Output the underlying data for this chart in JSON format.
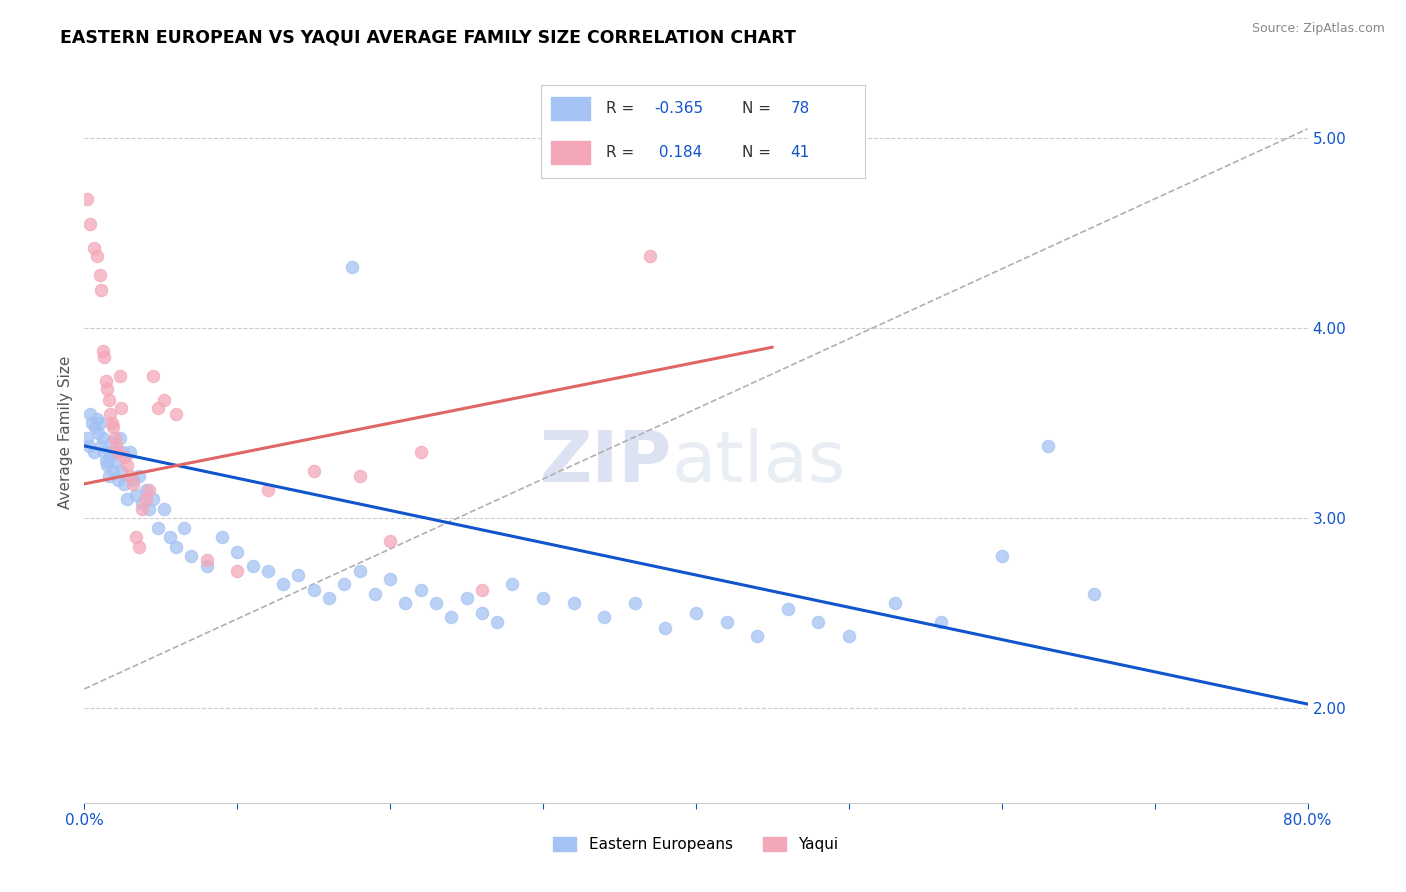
{
  "title": "EASTERN EUROPEAN VS YAQUI AVERAGE FAMILY SIZE CORRELATION CHART",
  "source": "Source: ZipAtlas.com",
  "ylabel": "Average Family Size",
  "watermark_zip": "ZIP",
  "watermark_atlas": "atlas",
  "xlim": [
    0.0,
    0.8
  ],
  "ylim": [
    1.5,
    5.4
  ],
  "xticks": [
    0.0,
    0.8
  ],
  "xticklabels": [
    "0.0%",
    "80.0%"
  ],
  "yticks_right": [
    2.0,
    3.0,
    4.0,
    5.0
  ],
  "color_blue": "#a4c2f4",
  "color_pink": "#f4a7b9",
  "color_blue_line": "#1155cc",
  "color_pink_line": "#e06666",
  "color_trend_dashed": "#b0b0b0",
  "background_color": "#ffffff",
  "title_color": "#000000",
  "source_color": "#888888",
  "blue_scatter": [
    [
      0.002,
      3.42
    ],
    [
      0.003,
      3.38
    ],
    [
      0.004,
      3.55
    ],
    [
      0.005,
      3.5
    ],
    [
      0.006,
      3.35
    ],
    [
      0.007,
      3.48
    ],
    [
      0.008,
      3.52
    ],
    [
      0.009,
      3.45
    ],
    [
      0.01,
      3.5
    ],
    [
      0.011,
      3.38
    ],
    [
      0.012,
      3.42
    ],
    [
      0.013,
      3.35
    ],
    [
      0.014,
      3.3
    ],
    [
      0.015,
      3.28
    ],
    [
      0.016,
      3.22
    ],
    [
      0.017,
      3.32
    ],
    [
      0.018,
      3.4
    ],
    [
      0.019,
      3.25
    ],
    [
      0.02,
      3.3
    ],
    [
      0.021,
      3.35
    ],
    [
      0.022,
      3.2
    ],
    [
      0.023,
      3.42
    ],
    [
      0.024,
      3.25
    ],
    [
      0.025,
      3.35
    ],
    [
      0.026,
      3.18
    ],
    [
      0.028,
      3.1
    ],
    [
      0.03,
      3.35
    ],
    [
      0.032,
      3.2
    ],
    [
      0.034,
      3.12
    ],
    [
      0.036,
      3.22
    ],
    [
      0.038,
      3.08
    ],
    [
      0.04,
      3.15
    ],
    [
      0.042,
      3.05
    ],
    [
      0.045,
      3.1
    ],
    [
      0.048,
      2.95
    ],
    [
      0.052,
      3.05
    ],
    [
      0.056,
      2.9
    ],
    [
      0.06,
      2.85
    ],
    [
      0.065,
      2.95
    ],
    [
      0.07,
      2.8
    ],
    [
      0.08,
      2.75
    ],
    [
      0.09,
      2.9
    ],
    [
      0.1,
      2.82
    ],
    [
      0.11,
      2.75
    ],
    [
      0.12,
      2.72
    ],
    [
      0.13,
      2.65
    ],
    [
      0.14,
      2.7
    ],
    [
      0.15,
      2.62
    ],
    [
      0.16,
      2.58
    ],
    [
      0.17,
      2.65
    ],
    [
      0.18,
      2.72
    ],
    [
      0.19,
      2.6
    ],
    [
      0.2,
      2.68
    ],
    [
      0.21,
      2.55
    ],
    [
      0.22,
      2.62
    ],
    [
      0.23,
      2.55
    ],
    [
      0.24,
      2.48
    ],
    [
      0.25,
      2.58
    ],
    [
      0.26,
      2.5
    ],
    [
      0.27,
      2.45
    ],
    [
      0.28,
      2.65
    ],
    [
      0.3,
      2.58
    ],
    [
      0.32,
      2.55
    ],
    [
      0.34,
      2.48
    ],
    [
      0.36,
      2.55
    ],
    [
      0.38,
      2.42
    ],
    [
      0.4,
      2.5
    ],
    [
      0.42,
      2.45
    ],
    [
      0.44,
      2.38
    ],
    [
      0.46,
      2.52
    ],
    [
      0.48,
      2.45
    ],
    [
      0.5,
      2.38
    ],
    [
      0.53,
      2.55
    ],
    [
      0.56,
      2.45
    ],
    [
      0.175,
      4.32
    ],
    [
      0.6,
      2.8
    ],
    [
      0.63,
      3.38
    ],
    [
      0.66,
      2.6
    ]
  ],
  "pink_scatter": [
    [
      0.002,
      4.68
    ],
    [
      0.004,
      4.55
    ],
    [
      0.006,
      4.42
    ],
    [
      0.008,
      4.38
    ],
    [
      0.01,
      4.28
    ],
    [
      0.011,
      4.2
    ],
    [
      0.012,
      3.88
    ],
    [
      0.013,
      3.85
    ],
    [
      0.014,
      3.72
    ],
    [
      0.015,
      3.68
    ],
    [
      0.016,
      3.62
    ],
    [
      0.017,
      3.55
    ],
    [
      0.018,
      3.5
    ],
    [
      0.019,
      3.48
    ],
    [
      0.02,
      3.42
    ],
    [
      0.021,
      3.38
    ],
    [
      0.022,
      3.35
    ],
    [
      0.023,
      3.75
    ],
    [
      0.024,
      3.58
    ],
    [
      0.026,
      3.32
    ],
    [
      0.028,
      3.28
    ],
    [
      0.03,
      3.22
    ],
    [
      0.032,
      3.18
    ],
    [
      0.034,
      2.9
    ],
    [
      0.036,
      2.85
    ],
    [
      0.038,
      3.05
    ],
    [
      0.04,
      3.1
    ],
    [
      0.042,
      3.15
    ],
    [
      0.045,
      3.75
    ],
    [
      0.048,
      3.58
    ],
    [
      0.052,
      3.62
    ],
    [
      0.06,
      3.55
    ],
    [
      0.08,
      2.78
    ],
    [
      0.1,
      2.72
    ],
    [
      0.12,
      3.15
    ],
    [
      0.15,
      3.25
    ],
    [
      0.18,
      3.22
    ],
    [
      0.2,
      2.88
    ],
    [
      0.22,
      3.35
    ],
    [
      0.26,
      2.62
    ],
    [
      0.37,
      4.38
    ]
  ],
  "blue_trendline": [
    [
      0.0,
      3.38
    ],
    [
      0.8,
      2.02
    ]
  ],
  "pink_trendline": [
    [
      0.0,
      3.18
    ],
    [
      0.45,
      3.9
    ]
  ],
  "dashed_trendline": [
    [
      0.0,
      2.1
    ],
    [
      0.8,
      5.05
    ]
  ]
}
